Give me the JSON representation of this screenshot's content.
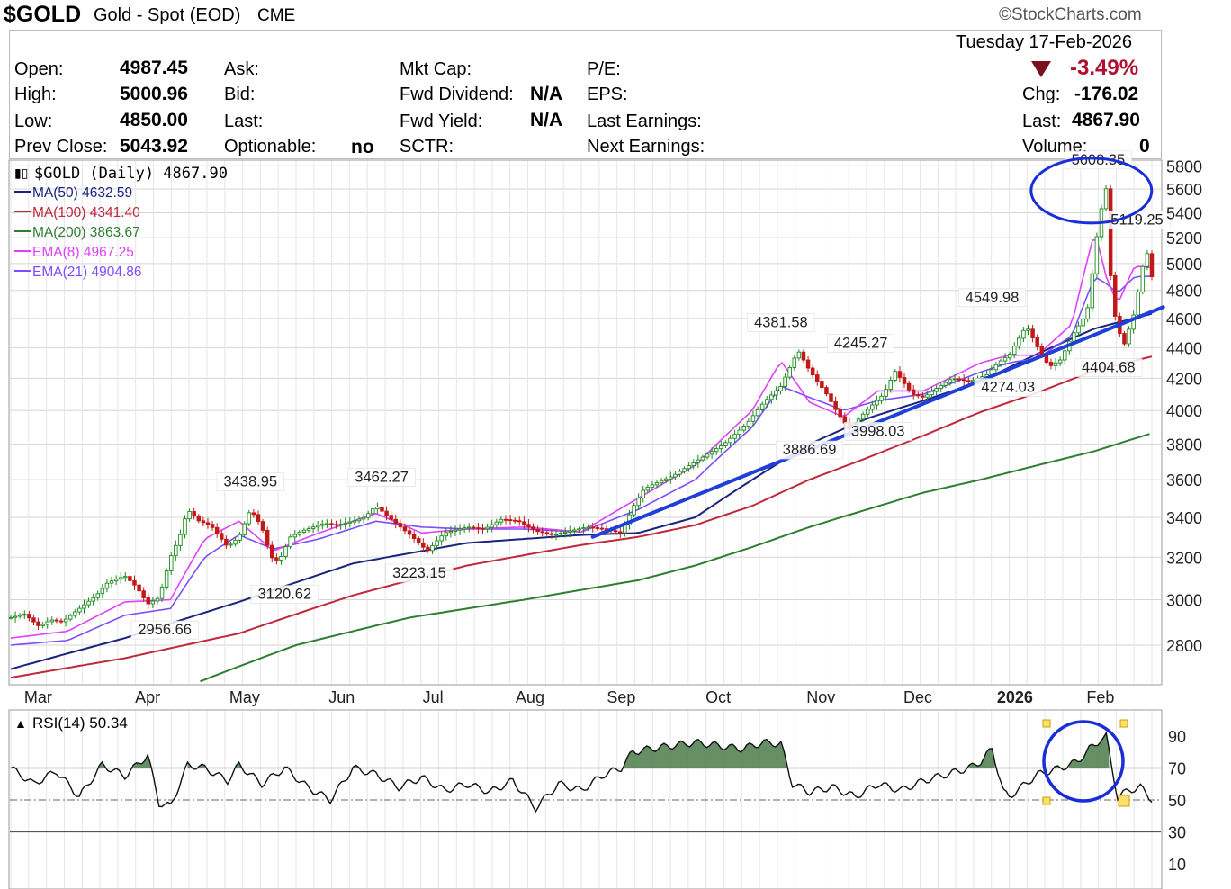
{
  "header": {
    "symbol": "$GOLD",
    "name": "Gold - Spot (EOD)",
    "exchange": "CME",
    "brand": "©StockCharts.com",
    "date": "Tuesday  17-Feb-2026"
  },
  "quote": {
    "open_label": "Open:",
    "open": "4987.45",
    "high_label": "High:",
    "high": "5000.96",
    "low_label": "Low:",
    "low": "4850.00",
    "prev_label": "Prev Close:",
    "prev": "5043.92",
    "ask_label": "Ask:",
    "bid_label": "Bid:",
    "last_label": "Last:",
    "optionable_label": "Optionable:",
    "optionable": "no",
    "mktcap_label": "Mkt Cap:",
    "fwddiv_label": "Fwd Dividend:",
    "fwddiv": "N/A",
    "fwdyield_label": "Fwd Yield:",
    "fwdyield": "N/A",
    "sctr_label": "SCTR:",
    "pe_label": "P/E:",
    "eps_label": "EPS:",
    "lastearn_label": "Last Earnings:",
    "nextearn_label": "Next Earnings:",
    "pct": "-3.49%",
    "chg_label": "Chg:",
    "chg": "-176.02",
    "last2_label": "Last:",
    "last2": "4867.90",
    "vol_label": "Volume:",
    "vol": "0"
  },
  "legend": {
    "main": "$GOLD (Daily) 4867.90",
    "ma50": "MA(50) 4632.59",
    "ma100": "MA(100) 4341.40",
    "ma200": "MA(200) 3863.67",
    "ema8": "EMA(8) 4967.25",
    "ema21": "EMA(21) 4904.86",
    "rsi": "RSI(14) 50.34"
  },
  "colors": {
    "ma50": "#1a237e",
    "ma100": "#c0283c",
    "ma200": "#2e7d32",
    "ema8": "#e040fb",
    "ema21": "#7c4dff",
    "trend": "#1f3fd6",
    "up": "#1b8a1b",
    "down": "#c21818",
    "rsi_fill": "#4b7b4b"
  },
  "chart_data": {
    "type": "line",
    "title": "$GOLD (Daily) 4867.90",
    "x_labels": [
      "Mar",
      "Apr",
      "May",
      "Jun",
      "Jul",
      "Aug",
      "Sep",
      "Oct",
      "Nov",
      "Dec",
      "2026",
      "Feb"
    ],
    "y_ticks": [
      2800,
      3000,
      3200,
      3400,
      3600,
      3800,
      4000,
      4200,
      4400,
      4600,
      4800,
      5000,
      5200,
      5400,
      5600,
      5800
    ],
    "ylim": [
      2640,
      5850
    ],
    "scale": "log",
    "price_path": {
      "t": [
        0,
        0.012,
        0.025,
        0.035,
        0.045,
        0.06,
        0.075,
        0.085,
        0.1,
        0.11,
        0.12,
        0.13,
        0.14,
        0.148,
        0.155,
        0.165,
        0.175,
        0.19,
        0.2,
        0.21,
        0.22,
        0.228,
        0.235,
        0.245,
        0.255,
        0.265,
        0.275,
        0.285,
        0.3,
        0.31,
        0.32,
        0.335,
        0.35,
        0.365,
        0.38,
        0.4,
        0.415,
        0.43,
        0.445,
        0.46,
        0.475,
        0.49,
        0.505,
        0.52,
        0.535,
        0.545,
        0.555,
        0.565,
        0.58,
        0.6,
        0.625,
        0.645,
        0.66,
        0.675,
        0.69,
        0.7,
        0.715,
        0.725,
        0.735,
        0.75,
        0.765,
        0.775,
        0.79,
        0.8,
        0.81,
        0.825,
        0.84,
        0.855,
        0.865,
        0.875,
        0.89,
        0.9,
        0.91,
        0.92,
        0.93,
        0.94,
        0.945,
        0.95,
        0.955,
        0.96,
        0.965,
        0.975,
        0.985,
        0.995,
        1.0
      ],
      "v": [
        2920,
        2935,
        2880,
        2910,
        2900,
        2960,
        3020,
        3080,
        3110,
        3060,
        2980,
        3010,
        3200,
        3300,
        3440,
        3380,
        3360,
        3250,
        3300,
        3440,
        3350,
        3200,
        3180,
        3300,
        3330,
        3350,
        3370,
        3360,
        3380,
        3400,
        3460,
        3380,
        3310,
        3230,
        3320,
        3350,
        3340,
        3390,
        3380,
        3330,
        3310,
        3330,
        3350,
        3340,
        3320,
        3450,
        3550,
        3580,
        3620,
        3700,
        3800,
        3920,
        4050,
        4150,
        4381,
        4250,
        4100,
        3980,
        3886,
        4000,
        4100,
        4245,
        4100,
        4080,
        4130,
        4200,
        4180,
        4220,
        4300,
        4350,
        4549,
        4400,
        4274,
        4320,
        4480,
        4600,
        4700,
        5100,
        5400,
        5608,
        4700,
        4404,
        4650,
        5119,
        4900,
        5000,
        4868
      ]
    },
    "annotations": [
      {
        "text": "2956.66",
        "t": 0.135,
        "value": 2956.66
      },
      {
        "text": "3438.95",
        "t": 0.21,
        "value": 3438.95
      },
      {
        "text": "3120.62",
        "t": 0.24,
        "value": 3120.62
      },
      {
        "text": "3462.27",
        "t": 0.325,
        "value": 3462.27
      },
      {
        "text": "3223.15",
        "t": 0.358,
        "value": 3223.15
      },
      {
        "text": "4381.58",
        "t": 0.675,
        "value": 4381.58
      },
      {
        "text": "3886.69",
        "t": 0.7,
        "value": 3886.69
      },
      {
        "text": "4245.27",
        "t": 0.745,
        "value": 4245.27
      },
      {
        "text": "3998.03",
        "t": 0.76,
        "value": 3998.03
      },
      {
        "text": "4549.98",
        "t": 0.86,
        "value": 4549.98
      },
      {
        "text": "4274.03",
        "t": 0.874,
        "value": 4274.03
      },
      {
        "text": "5608.35",
        "t": 0.953,
        "value": 5608.35
      },
      {
        "text": "5119.25",
        "t": 0.987,
        "value": 5119.25
      },
      {
        "text": "4404.68",
        "t": 0.962,
        "value": 4404.68
      }
    ],
    "series": [
      {
        "name": "MA(50) 4632.59",
        "t": [
          0,
          0.1,
          0.2,
          0.3,
          0.4,
          0.5,
          0.55,
          0.6,
          0.65,
          0.7,
          0.75,
          0.8,
          0.85,
          0.9,
          0.95,
          1.0
        ],
        "v": [
          2700,
          2830,
          2990,
          3170,
          3270,
          3310,
          3320,
          3400,
          3600,
          3800,
          3950,
          4060,
          4180,
          4360,
          4530,
          4632.59
        ]
      },
      {
        "name": "MA(100) 4341.40",
        "t": [
          0,
          0.1,
          0.2,
          0.3,
          0.4,
          0.5,
          0.55,
          0.6,
          0.65,
          0.7,
          0.75,
          0.8,
          0.85,
          0.9,
          0.95,
          1.0
        ],
        "v": [
          2665,
          2745,
          2850,
          3020,
          3160,
          3260,
          3300,
          3360,
          3460,
          3600,
          3720,
          3850,
          3990,
          4110,
          4250,
          4341.4
        ]
      },
      {
        "name": "MA(200) 3863.67",
        "t": [
          0.166,
          0.25,
          0.35,
          0.45,
          0.55,
          0.6,
          0.65,
          0.7,
          0.75,
          0.8,
          0.85,
          0.9,
          0.95,
          1.0
        ],
        "v": [
          2650,
          2800,
          2920,
          3000,
          3090,
          3160,
          3250,
          3350,
          3440,
          3530,
          3600,
          3680,
          3760,
          3863.67
        ]
      },
      {
        "name": "EMA(8) 4967.25",
        "t": [
          0,
          0.05,
          0.1,
          0.14,
          0.17,
          0.2,
          0.23,
          0.27,
          0.32,
          0.36,
          0.4,
          0.45,
          0.5,
          0.55,
          0.6,
          0.65,
          0.675,
          0.7,
          0.73,
          0.76,
          0.8,
          0.85,
          0.875,
          0.9,
          0.93,
          0.95,
          0.96,
          0.97,
          0.985,
          1.0
        ],
        "v": [
          2830,
          2860,
          2990,
          3000,
          3290,
          3380,
          3230,
          3320,
          3420,
          3320,
          3340,
          3350,
          3325,
          3500,
          3680,
          4000,
          4310,
          4050,
          3960,
          4120,
          4120,
          4300,
          4350,
          4350,
          4560,
          5250,
          4900,
          4700,
          4980,
          4967.25
        ]
      },
      {
        "name": "EMA(21) 4904.86",
        "t": [
          0,
          0.05,
          0.1,
          0.14,
          0.17,
          0.2,
          0.23,
          0.27,
          0.32,
          0.36,
          0.4,
          0.45,
          0.5,
          0.55,
          0.6,
          0.65,
          0.675,
          0.7,
          0.73,
          0.76,
          0.8,
          0.85,
          0.875,
          0.9,
          0.93,
          0.95,
          0.96,
          0.97,
          0.985,
          1.0
        ],
        "v": [
          2800,
          2820,
          2930,
          2960,
          3200,
          3310,
          3240,
          3290,
          3380,
          3350,
          3340,
          3340,
          3325,
          3440,
          3600,
          3900,
          4150,
          4080,
          4000,
          4060,
          4100,
          4240,
          4300,
          4330,
          4480,
          4900,
          4850,
          4780,
          4900,
          4904.86
        ]
      }
    ],
    "trendline": {
      "t": [
        0.51,
        1.01
      ],
      "v": [
        3300,
        4680
      ]
    },
    "circles": [
      {
        "t": 0.947,
        "value": 5608.35
      }
    ],
    "rsi": {
      "name": "RSI(14) 50.34",
      "y_ticks": [
        10,
        30,
        50,
        70,
        90
      ],
      "ylim": [
        0,
        100
      ],
      "t": [
        0,
        0.02,
        0.04,
        0.06,
        0.08,
        0.1,
        0.12,
        0.13,
        0.14,
        0.155,
        0.17,
        0.18,
        0.19,
        0.2,
        0.22,
        0.24,
        0.26,
        0.28,
        0.3,
        0.32,
        0.34,
        0.36,
        0.38,
        0.4,
        0.42,
        0.44,
        0.46,
        0.48,
        0.5,
        0.52,
        0.535,
        0.545,
        0.56,
        0.58,
        0.6,
        0.62,
        0.64,
        0.66,
        0.675,
        0.685,
        0.7,
        0.72,
        0.74,
        0.76,
        0.78,
        0.8,
        0.82,
        0.84,
        0.85,
        0.86,
        0.87,
        0.875,
        0.9,
        0.92,
        0.935,
        0.945,
        0.95,
        0.955,
        0.96,
        0.965,
        0.97,
        0.98,
        0.99,
        1.0
      ],
      "v": [
        70,
        60,
        68,
        52,
        72,
        65,
        78,
        48,
        46,
        72,
        70,
        66,
        62,
        72,
        60,
        70,
        58,
        50,
        70,
        66,
        58,
        64,
        56,
        60,
        55,
        62,
        45,
        60,
        56,
        66,
        70,
        80,
        82,
        84,
        86,
        84,
        82,
        86,
        85,
        60,
        55,
        58,
        52,
        60,
        56,
        62,
        66,
        70,
        74,
        82,
        55,
        52,
        66,
        70,
        74,
        82,
        84,
        88,
        90,
        70,
        52,
        56,
        58,
        50.34
      ]
    }
  }
}
